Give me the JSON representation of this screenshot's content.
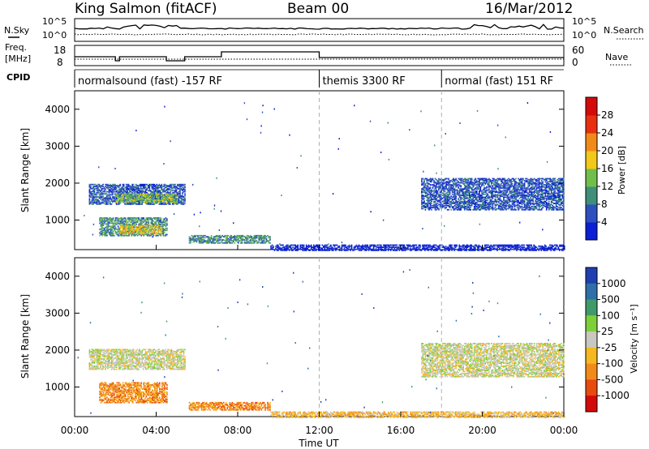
{
  "header": {
    "station": "King Salmon (fitACF)",
    "beam": "Beam 00",
    "date": "16/Mar/2012"
  },
  "strip_panels": {
    "nsky_label": "N.Sky",
    "nsearch_label": "N.Search",
    "freq_label_1": "Freq.",
    "freq_label_2": "[MHz]",
    "nave_label": "Nave",
    "cpid_label": "CPID",
    "noise_left_ticks": [
      "10^5",
      "10^0"
    ],
    "noise_right_ticks": [
      "10^5",
      "10^0"
    ],
    "freq_left_ticks": [
      "18",
      "8"
    ],
    "nave_right_ticks": [
      "60",
      "0"
    ],
    "modes": [
      {
        "label": "normalsound (fast) -157 RF",
        "start_hr": 0
      },
      {
        "label": "themis 3300 RF",
        "start_hr": 12
      },
      {
        "label": "normal (fast) 151 RF",
        "start_hr": 18
      }
    ]
  },
  "chart_data": [
    {
      "type": "heatmap",
      "name": "Power",
      "ylabel": "Slant Range [km]",
      "xlim": [
        0,
        24
      ],
      "ylim": [
        200,
        4500
      ],
      "yticks": [
        "1000",
        "2000",
        "3000",
        "4000"
      ],
      "colorbar": {
        "label": "Power [dB]",
        "ticks": [
          "4",
          "8",
          "12",
          "16",
          "20",
          "24",
          "28"
        ],
        "colors": [
          "#0a1fd6",
          "#2e4fc0",
          "#3f8f7a",
          "#6fbf4a",
          "#f2c81a",
          "#f28a1a",
          "#e8300f",
          "#d40a0a"
        ]
      },
      "regions": [
        {
          "t0": 0.7,
          "t1": 5.4,
          "r0": 1450,
          "r1": 2000,
          "level": 1
        },
        {
          "t0": 2.0,
          "t1": 5.0,
          "r0": 1500,
          "r1": 1750,
          "level": 3
        },
        {
          "t0": 1.2,
          "t1": 4.5,
          "r0": 600,
          "r1": 1100,
          "level": 2
        },
        {
          "t0": 2.2,
          "t1": 4.3,
          "r0": 650,
          "r1": 900,
          "level": 4
        },
        {
          "t0": 5.6,
          "t1": 9.6,
          "r0": 400,
          "r1": 600,
          "level": 2
        },
        {
          "t0": 9.6,
          "t1": 24.0,
          "r0": 200,
          "r1": 350,
          "level": 0
        },
        {
          "t0": 17.0,
          "t1": 24.0,
          "r0": 1300,
          "r1": 2150,
          "level": 1
        }
      ]
    },
    {
      "type": "heatmap",
      "name": "Velocity",
      "ylabel": "Slant Range [km]",
      "xlabel": "Time UT",
      "xlim": [
        0,
        24
      ],
      "ylim": [
        200,
        4500
      ],
      "xticks": [
        "00:00",
        "04:00",
        "08:00",
        "12:00",
        "16:00",
        "20:00",
        "00:00"
      ],
      "yticks": [
        "1000",
        "2000",
        "3000",
        "4000"
      ],
      "colorbar": {
        "label": "Velocity [m s⁻¹]",
        "ticks": [
          "1000",
          "500",
          "100",
          "25",
          "-25",
          "-100",
          "-500",
          "-1000"
        ],
        "colors": [
          "#1f3fb0",
          "#2e6fa8",
          "#3f9a6a",
          "#7fcf3a",
          "#c8c8c0",
          "#f5b820",
          "#f28a1a",
          "#e84a10",
          "#d40a0a"
        ]
      },
      "regions": [
        {
          "t0": 0.7,
          "t1": 5.4,
          "r0": 1500,
          "r1": 2050,
          "level": 4
        },
        {
          "t0": 1.2,
          "t1": 4.5,
          "r0": 600,
          "r1": 1150,
          "level": 6
        },
        {
          "t0": 5.6,
          "t1": 9.6,
          "r0": 400,
          "r1": 600,
          "level": 6
        },
        {
          "t0": 9.6,
          "t1": 24.0,
          "r0": 200,
          "r1": 350,
          "level": 5
        },
        {
          "t0": 17.0,
          "t1": 24.0,
          "r0": 1300,
          "r1": 2200,
          "level": 4
        }
      ]
    }
  ],
  "colors": {
    "dashed_grid": "#b0b0b0"
  }
}
